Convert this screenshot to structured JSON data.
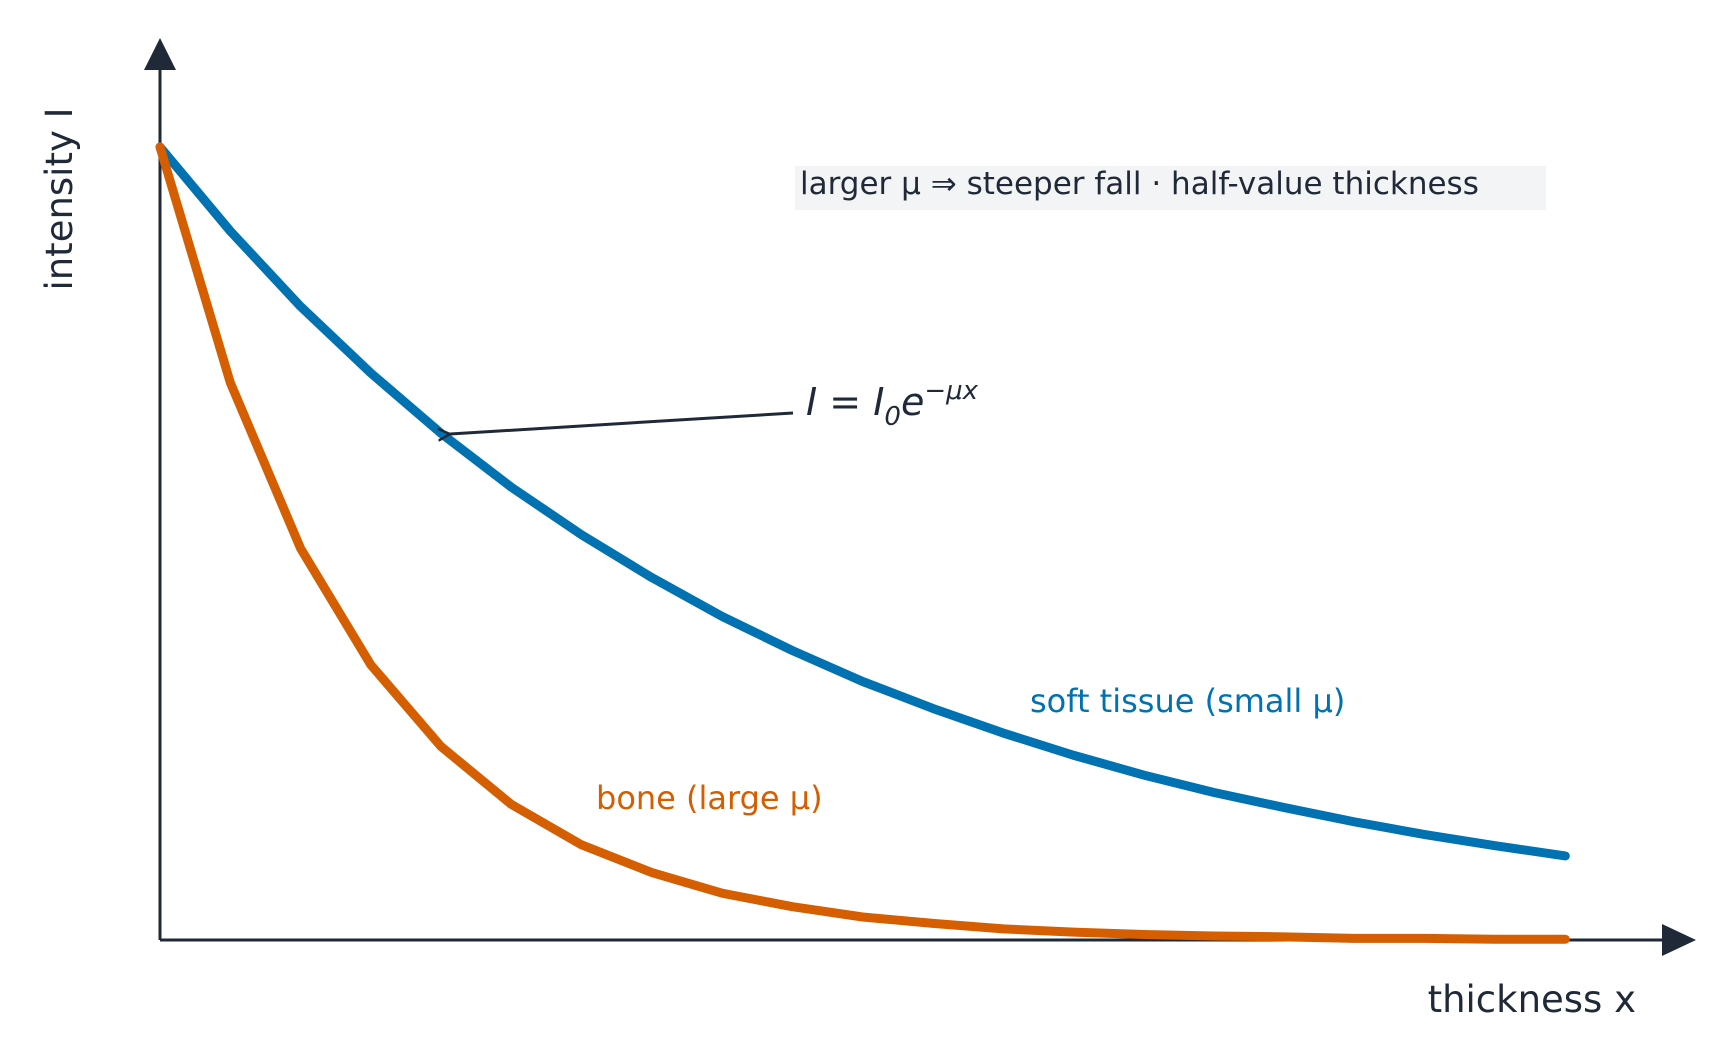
{
  "chart_data": {
    "type": "line",
    "title": "larger μ ⇒ steeper fall · half-value thickness",
    "x_label": "thickness x",
    "y_label": "intensity I",
    "annotation": [
      "I = I",
      "0",
      "e",
      "−μx"
    ],
    "x": [
      0,
      0.5,
      1,
      1.5,
      2,
      2.5,
      3,
      3.5,
      4,
      4.5,
      5,
      5.5,
      6,
      6.5,
      7,
      7.5,
      8,
      8.5,
      9,
      9.5,
      10
    ],
    "series": [
      {
        "name": "soft tissue (small μ)",
        "color": "#0072b2",
        "values": [
          1,
          0.894,
          0.799,
          0.715,
          0.639,
          0.571,
          0.511,
          0.457,
          0.408,
          0.365,
          0.326,
          0.292,
          0.261,
          0.233,
          0.208,
          0.186,
          0.167,
          0.149,
          0.133,
          0.119,
          0.106
        ]
      },
      {
        "name": "bone (large μ)",
        "color": "#d55e00",
        "values": [
          1,
          0.703,
          0.494,
          0.347,
          0.244,
          0.171,
          0.12,
          0.085,
          0.059,
          0.042,
          0.029,
          0.021,
          0.014,
          0.01,
          0.007,
          0.005,
          0.004,
          0.002,
          0.002,
          0.001,
          0.001
        ]
      }
    ],
    "xlim": [
      0,
      10.93
    ],
    "ylim": [
      0,
      1.14
    ]
  }
}
